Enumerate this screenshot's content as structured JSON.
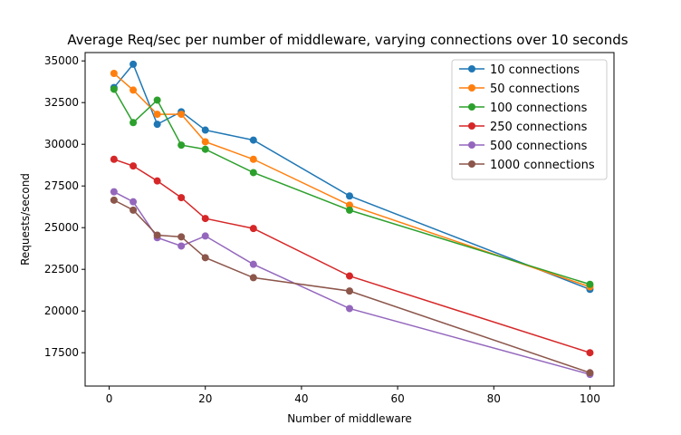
{
  "chart_data": {
    "type": "line",
    "title": "Average Req/sec per number of middleware, varying connections over 10 seconds",
    "xlabel": "Number of middleware",
    "ylabel": "Requests/second",
    "xlim": [
      -5,
      105
    ],
    "ylim": [
      15500,
      35500
    ],
    "xticks": [
      0,
      20,
      40,
      60,
      80,
      100
    ],
    "yticks": [
      17500,
      20000,
      22500,
      25000,
      27500,
      30000,
      32500,
      35000
    ],
    "grid": false,
    "legend_position": "top-right",
    "x": [
      1,
      5,
      10,
      15,
      20,
      30,
      50,
      100
    ],
    "series": [
      {
        "name": "10 connections",
        "color": "#1f77b4",
        "values": [
          33400,
          34800,
          31200,
          31950,
          30850,
          30250,
          26900,
          21300
        ]
      },
      {
        "name": "50 connections",
        "color": "#ff7f0e",
        "values": [
          34250,
          33250,
          31800,
          31800,
          30150,
          29100,
          26350,
          21450
        ]
      },
      {
        "name": "100 connections",
        "color": "#2ca02c",
        "values": [
          33300,
          31300,
          32650,
          29950,
          29700,
          28300,
          26050,
          21600
        ]
      },
      {
        "name": "250 connections",
        "color": "#d62728",
        "values": [
          29100,
          28700,
          27800,
          26800,
          25550,
          24950,
          22100,
          17500
        ]
      },
      {
        "name": "500 connections",
        "color": "#9467bd",
        "values": [
          27150,
          26550,
          24400,
          23900,
          24500,
          22800,
          20150,
          16200
        ]
      },
      {
        "name": "1000 connections",
        "color": "#8c564b",
        "values": [
          26650,
          26050,
          24550,
          24450,
          23200,
          22000,
          21200,
          16300
        ]
      }
    ]
  }
}
